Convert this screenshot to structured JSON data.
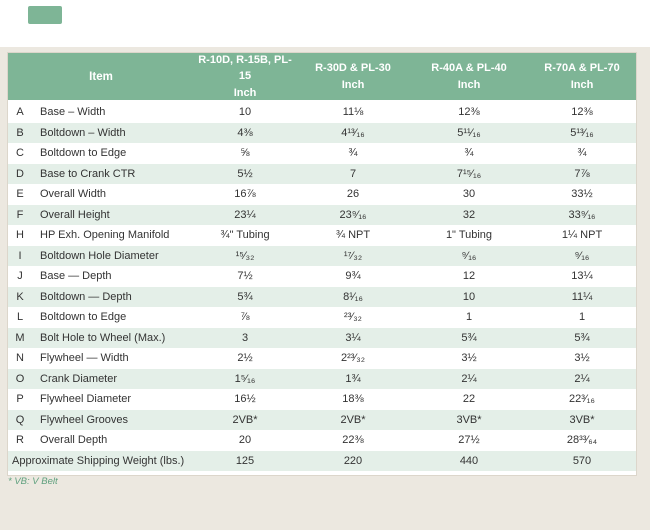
{
  "page": {
    "footnote": "* VB: V Belt"
  },
  "table": {
    "item_header": "Item",
    "columns": [
      {
        "model": "R-10D, R-15B, PL-15",
        "unit": "Inch"
      },
      {
        "model": "R-30D & PL-30",
        "unit": "Inch"
      },
      {
        "model": "R-40A & PL-40",
        "unit": "Inch"
      },
      {
        "model": "R-70A & PL-70",
        "unit": "Inch"
      }
    ],
    "rows": [
      {
        "letter": "A",
        "item": "Base – Width",
        "values": [
          "10",
          "11⅛",
          "12⅜",
          "12⅜"
        ]
      },
      {
        "letter": "B",
        "item": "Boltdown – Width",
        "values": [
          "4⅜",
          "4¹³⁄₁₆",
          "5¹¹⁄₁₆",
          "5¹³⁄₁₆"
        ]
      },
      {
        "letter": "C",
        "item": "Boltdown to Edge",
        "values": [
          "⅝",
          "¾",
          "¾",
          "¾"
        ]
      },
      {
        "letter": "D",
        "item": "Base to Crank CTR",
        "values": [
          "5½",
          "7",
          "7¹⁵⁄₁₆",
          "7⅞"
        ]
      },
      {
        "letter": "E",
        "item": "Overall Width",
        "values": [
          "16⅞",
          "26",
          "30",
          "33½"
        ]
      },
      {
        "letter": "F",
        "item": "Overall Height",
        "values": [
          "23¼",
          "23⁹⁄₁₆",
          "32",
          "33⁹⁄₁₆"
        ]
      },
      {
        "letter": "H",
        "item": "HP Exh. Opening Manifold",
        "values": [
          "¾\" Tubing",
          "¾ NPT",
          "1\" Tubing",
          "1¼ NPT"
        ]
      },
      {
        "letter": "I",
        "item": "Boltdown Hole Diameter",
        "values": [
          "¹⁵⁄₃₂",
          "¹⁷⁄₃₂",
          "⁹⁄₁₆",
          "⁹⁄₁₆"
        ]
      },
      {
        "letter": "J",
        "item": "Base — Depth",
        "values": [
          "7½",
          "9¾",
          "12",
          "13¼"
        ]
      },
      {
        "letter": "K",
        "item": "Boltdown — Depth",
        "values": [
          "5¾",
          "8¹⁄₁₆",
          "10",
          "11¼"
        ]
      },
      {
        "letter": "L",
        "item": "Boltdown to Edge",
        "values": [
          "⅞",
          "²³⁄₃₂",
          "1",
          "1"
        ]
      },
      {
        "letter": "M",
        "item": "Bolt Hole to Wheel (Max.)",
        "values": [
          "3",
          "3¼",
          "5¾",
          "5¾"
        ]
      },
      {
        "letter": "N",
        "item": "Flywheel — Width",
        "values": [
          "2½",
          "2²³⁄₃₂",
          "3½",
          "3½"
        ]
      },
      {
        "letter": "O",
        "item": "Crank Diameter",
        "values": [
          "1⁵⁄₁₆",
          "1¾",
          "2¼",
          "2¼"
        ]
      },
      {
        "letter": "P",
        "item": "Flywheel Diameter",
        "values": [
          "16½",
          "18⅜",
          "22",
          "22³⁄₁₆"
        ]
      },
      {
        "letter": "Q",
        "item": "Flywheel Grooves",
        "values": [
          "2VB*",
          "2VB*",
          "3VB*",
          "3VB*"
        ]
      },
      {
        "letter": "R",
        "item": "Overall Depth",
        "values": [
          "20",
          "22⅜",
          "27½",
          "28³³⁄₆₄"
        ]
      }
    ],
    "summary_row": {
      "label": "Approximate Shipping Weight (lbs.)",
      "values": [
        "125",
        "220",
        "440",
        "570"
      ]
    }
  },
  "colors": {
    "header_green": "#7eb596",
    "row_green": "#e4efe8",
    "page_beige": "#ece8e0",
    "footnote_green": "#5fa07e",
    "text_dark": "#333333"
  }
}
